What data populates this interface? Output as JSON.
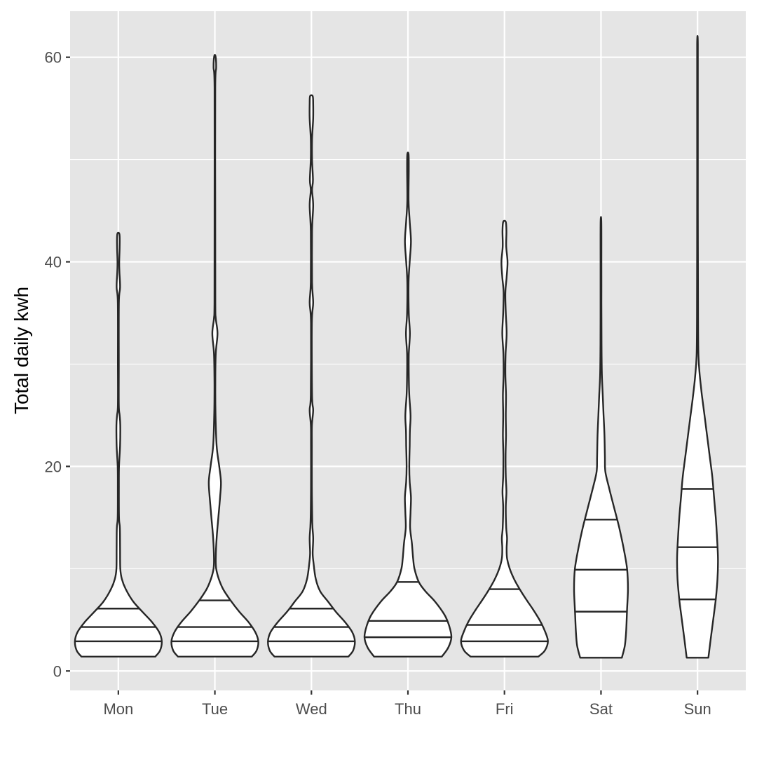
{
  "chart_data": {
    "type": "violin",
    "ylabel": "Total daily kwh",
    "ylim": [
      -1.9,
      64.5
    ],
    "y_ticks": [
      0,
      20,
      40,
      60
    ],
    "grid": true,
    "panel_background": "#e5e5e5",
    "grid_color": "#ffffff",
    "outline_color": "#262626",
    "fill_color": "#ffffff",
    "quantiles_drawn": [
      0.25,
      0.5,
      0.75
    ],
    "categories": [
      "Mon",
      "Tue",
      "Wed",
      "Thu",
      "Fri",
      "Sat",
      "Sun"
    ],
    "violins": [
      {
        "category": "Mon",
        "min": 1.4,
        "max": 42.7,
        "quantiles": [
          2.9,
          4.3,
          6.1
        ],
        "density": [
          [
            1.4,
            0.85
          ],
          [
            2.0,
            0.96
          ],
          [
            2.9,
            1.0
          ],
          [
            3.8,
            0.94
          ],
          [
            4.8,
            0.77
          ],
          [
            5.8,
            0.55
          ],
          [
            6.8,
            0.34
          ],
          [
            8.0,
            0.17
          ],
          [
            9.0,
            0.08
          ],
          [
            10,
            0.045
          ],
          [
            12,
            0.04
          ],
          [
            14,
            0.035
          ],
          [
            15,
            0.015
          ],
          [
            18,
            0.012
          ],
          [
            20,
            0.015
          ],
          [
            22,
            0.04
          ],
          [
            24,
            0.045
          ],
          [
            25,
            0.03
          ],
          [
            26,
            0.01
          ],
          [
            30,
            0.01
          ],
          [
            36,
            0.012
          ],
          [
            37.5,
            0.04
          ],
          [
            39,
            0.025
          ],
          [
            40,
            0.02
          ],
          [
            41.5,
            0.03
          ],
          [
            42.7,
            0.025
          ]
        ]
      },
      {
        "category": "Tue",
        "min": 1.4,
        "max": 60.1,
        "quantiles": [
          2.9,
          4.3,
          6.9
        ],
        "density": [
          [
            1.4,
            0.85
          ],
          [
            2.0,
            0.96
          ],
          [
            2.9,
            1.0
          ],
          [
            3.8,
            0.93
          ],
          [
            4.8,
            0.77
          ],
          [
            5.8,
            0.56
          ],
          [
            6.9,
            0.36
          ],
          [
            8.0,
            0.19
          ],
          [
            9.0,
            0.09
          ],
          [
            10,
            0.03
          ],
          [
            11,
            0.02
          ],
          [
            13,
            0.04
          ],
          [
            15,
            0.08
          ],
          [
            17,
            0.12
          ],
          [
            18.5,
            0.14
          ],
          [
            20,
            0.1
          ],
          [
            22,
            0.04
          ],
          [
            25,
            0.015
          ],
          [
            28,
            0.01
          ],
          [
            31,
            0.02
          ],
          [
            33,
            0.06
          ],
          [
            34.5,
            0.02
          ],
          [
            36,
            0.01
          ],
          [
            45,
            0.008
          ],
          [
            57,
            0.008
          ],
          [
            59,
            0.03
          ],
          [
            60.1,
            0.015
          ]
        ]
      },
      {
        "category": "Wed",
        "min": 1.4,
        "max": 56.2,
        "quantiles": [
          2.9,
          4.3,
          6.1
        ],
        "density": [
          [
            1.4,
            0.85
          ],
          [
            2.0,
            0.96
          ],
          [
            2.9,
            1.0
          ],
          [
            3.8,
            0.94
          ],
          [
            4.8,
            0.77
          ],
          [
            5.8,
            0.56
          ],
          [
            6.8,
            0.38
          ],
          [
            7.8,
            0.2
          ],
          [
            9.0,
            0.1
          ],
          [
            10.5,
            0.05
          ],
          [
            11.5,
            0.03
          ],
          [
            13,
            0.04
          ],
          [
            14.5,
            0.02
          ],
          [
            18,
            0.01
          ],
          [
            22,
            0.01
          ],
          [
            24,
            0.012
          ],
          [
            25.5,
            0.04
          ],
          [
            27,
            0.015
          ],
          [
            34,
            0.01
          ],
          [
            36,
            0.04
          ],
          [
            38,
            0.015
          ],
          [
            43,
            0.015
          ],
          [
            45.5,
            0.04
          ],
          [
            47,
            0.015
          ],
          [
            48,
            0.035
          ],
          [
            50,
            0.015
          ],
          [
            52,
            0.015
          ],
          [
            54,
            0.04
          ],
          [
            55.5,
            0.04
          ],
          [
            56.2,
            0.03
          ]
        ]
      },
      {
        "category": "Thu",
        "min": 1.4,
        "max": 50.5,
        "quantiles": [
          3.3,
          4.9,
          8.7
        ],
        "density": [
          [
            1.4,
            0.78
          ],
          [
            2.3,
            0.93
          ],
          [
            3.3,
            1.0
          ],
          [
            4.4,
            0.95
          ],
          [
            5.5,
            0.84
          ],
          [
            6.8,
            0.62
          ],
          [
            7.8,
            0.4
          ],
          [
            8.7,
            0.25
          ],
          [
            10,
            0.15
          ],
          [
            11,
            0.12
          ],
          [
            12.5,
            0.09
          ],
          [
            14,
            0.05
          ],
          [
            15.5,
            0.06
          ],
          [
            17,
            0.07
          ],
          [
            18.5,
            0.04
          ],
          [
            20,
            0.03
          ],
          [
            22,
            0.04
          ],
          [
            23.5,
            0.045
          ],
          [
            25,
            0.06
          ],
          [
            27,
            0.03
          ],
          [
            29,
            0.02
          ],
          [
            31,
            0.02
          ],
          [
            33,
            0.045
          ],
          [
            35,
            0.02
          ],
          [
            38,
            0.015
          ],
          [
            40,
            0.04
          ],
          [
            42,
            0.07
          ],
          [
            44,
            0.04
          ],
          [
            46,
            0.015
          ],
          [
            49,
            0.02
          ],
          [
            50.5,
            0.015
          ]
        ]
      },
      {
        "category": "Fri",
        "min": 1.4,
        "max": 43.9,
        "quantiles": [
          2.9,
          4.5,
          8.0
        ],
        "density": [
          [
            1.4,
            0.78
          ],
          [
            2.0,
            0.93
          ],
          [
            2.9,
            1.0
          ],
          [
            3.8,
            0.94
          ],
          [
            4.9,
            0.82
          ],
          [
            6.0,
            0.66
          ],
          [
            7.0,
            0.5
          ],
          [
            8.0,
            0.35
          ],
          [
            9,
            0.22
          ],
          [
            10,
            0.12
          ],
          [
            11,
            0.06
          ],
          [
            12,
            0.05
          ],
          [
            13,
            0.06
          ],
          [
            14,
            0.04
          ],
          [
            16,
            0.03
          ],
          [
            17.5,
            0.045
          ],
          [
            19,
            0.03
          ],
          [
            21,
            0.025
          ],
          [
            23,
            0.035
          ],
          [
            25,
            0.03
          ],
          [
            27,
            0.035
          ],
          [
            29,
            0.02
          ],
          [
            31,
            0.025
          ],
          [
            33,
            0.05
          ],
          [
            35,
            0.03
          ],
          [
            37,
            0.02
          ],
          [
            38.5,
            0.05
          ],
          [
            40,
            0.07
          ],
          [
            41.5,
            0.04
          ],
          [
            43,
            0.045
          ],
          [
            43.9,
            0.03
          ]
        ]
      },
      {
        "category": "Sat",
        "min": 1.3,
        "max": 43.9,
        "quantiles": [
          5.8,
          9.9,
          14.8
        ],
        "density": [
          [
            1.3,
            0.48
          ],
          [
            2.5,
            0.55
          ],
          [
            4,
            0.58
          ],
          [
            6,
            0.6
          ],
          [
            8,
            0.62
          ],
          [
            10,
            0.6
          ],
          [
            12,
            0.52
          ],
          [
            14,
            0.42
          ],
          [
            16,
            0.3
          ],
          [
            18,
            0.18
          ],
          [
            19.5,
            0.1
          ],
          [
            21,
            0.09
          ],
          [
            23,
            0.08
          ],
          [
            25,
            0.06
          ],
          [
            27,
            0.04
          ],
          [
            29,
            0.02
          ],
          [
            32,
            0.012
          ],
          [
            36,
            0.01
          ],
          [
            40,
            0.01
          ],
          [
            43.9,
            0.008
          ]
        ]
      },
      {
        "category": "Sun",
        "min": 1.3,
        "max": 61.3,
        "quantiles": [
          7.0,
          12.1,
          17.8
        ],
        "density": [
          [
            1.3,
            0.25
          ],
          [
            3,
            0.3
          ],
          [
            5,
            0.36
          ],
          [
            7,
            0.42
          ],
          [
            9,
            0.46
          ],
          [
            11,
            0.47
          ],
          [
            13,
            0.45
          ],
          [
            15,
            0.42
          ],
          [
            17,
            0.38
          ],
          [
            19,
            0.34
          ],
          [
            21,
            0.28
          ],
          [
            23,
            0.22
          ],
          [
            25,
            0.16
          ],
          [
            27,
            0.1
          ],
          [
            29,
            0.05
          ],
          [
            31,
            0.02
          ],
          [
            35,
            0.012
          ],
          [
            45,
            0.008
          ],
          [
            55,
            0.008
          ],
          [
            61.3,
            0.008
          ]
        ]
      }
    ]
  }
}
